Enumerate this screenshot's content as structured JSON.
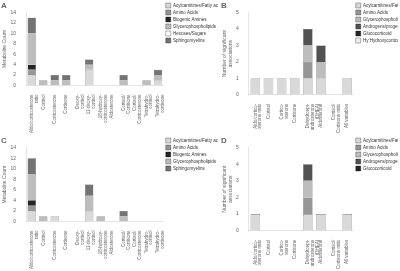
{
  "chart_data": [
    {
      "type": "bar",
      "stacked": true,
      "title": "A",
      "y_label": "Metabolite Count",
      "categories": [
        "Aldo/corticosterone\nratio",
        "Cortisol",
        "Corticosterone",
        "Cortisone",
        "Deoxy-\ncortisol",
        "11-deoxy-\ncortisol",
        "18-hydroxy-\ncorticosterone",
        "Aldosterone",
        "Cortisol/\nCortisone",
        "Cortisol/\nCorticosterone",
        "Tetrahydro-\ncortisol",
        "Tetrahydro-\ncortisone"
      ],
      "series": [
        {
          "name": "Acylcarnitines/Fatty acids",
          "color": "#d9d9d9",
          "values": [
            2,
            0,
            0,
            0,
            0,
            3,
            0,
            0,
            0,
            0,
            0,
            1
          ]
        },
        {
          "name": "Amino Acids",
          "color": "#969696",
          "values": [
            1,
            0,
            0,
            0,
            0,
            0,
            0,
            0,
            0,
            0,
            0,
            0
          ]
        },
        {
          "name": "Biogenic Amines",
          "color": "#252525",
          "values": [
            1,
            0,
            0,
            0,
            0,
            0,
            0,
            0,
            0,
            0,
            0,
            0
          ]
        },
        {
          "name": "Glycerophospholipids",
          "color": "#bdbdbd",
          "values": [
            6,
            1,
            1,
            1,
            0,
            1,
            0,
            0,
            1,
            0,
            1,
            1
          ]
        },
        {
          "name": "Hexoses/Sugars",
          "color": "#ffffff",
          "values": [
            0,
            0,
            0,
            0,
            0,
            0,
            0,
            0,
            0,
            0,
            0,
            0
          ]
        },
        {
          "name": "Sphingomyelins",
          "color": "#737373",
          "values": [
            3,
            0,
            1,
            1,
            0,
            1,
            0,
            0,
            1,
            0,
            0,
            1
          ]
        }
      ],
      "ylim": [
        0,
        14
      ],
      "yticks": [
        0,
        2,
        4,
        6,
        8,
        10,
        12,
        14
      ],
      "grid": false,
      "legend": "upper right"
    },
    {
      "type": "bar",
      "stacked": true,
      "title": "B",
      "y_label": "Number of significant associations",
      "categories": [
        "Aldo/cortico-\nsterone ratio",
        "Cortisol",
        "Cortico-\nsterone",
        "Cortisone",
        "Dehydroepi-\nandrosterone\n(DHEA)",
        "Aldosterone",
        "Cortisol/\nCortisone ratio",
        "All variables"
      ],
      "series": [
        {
          "name": "Acylcarnitines/Fatty acids",
          "color": "#d9d9d9",
          "values": [
            1,
            1,
            1,
            1,
            1,
            1,
            0,
            1
          ]
        },
        {
          "name": "Amino Acids",
          "color": "#969696",
          "values": [
            0,
            0,
            0,
            0,
            1,
            0,
            0,
            0
          ]
        },
        {
          "name": "Glycerophospholipids",
          "color": "#bdbdbd",
          "values": [
            0,
            0,
            0,
            0,
            1,
            1,
            0,
            0
          ]
        },
        {
          "name": "Androgens/progestins",
          "color": "#525252",
          "values": [
            0,
            0,
            0,
            0,
            1,
            1,
            0,
            0
          ]
        },
        {
          "name": "Glucocorticoid",
          "color": "#252525",
          "values": [
            0,
            0,
            0,
            0,
            0,
            0,
            0,
            0
          ]
        },
        {
          "name": "Hy Hydroxycorticosteroids",
          "color": "#f0f0f0",
          "values": [
            0,
            0,
            0,
            0,
            0,
            0,
            0,
            0
          ]
        }
      ],
      "ylim": [
        0,
        5
      ],
      "yticks": [
        0,
        1,
        2,
        3,
        4,
        5
      ],
      "grid": false,
      "legend": "upper right"
    },
    {
      "type": "bar",
      "stacked": true,
      "title": "C",
      "y_label": "Metabolite Count",
      "categories": [
        "Aldo/corticosterone\nratio",
        "Cortisol",
        "Corticosterone",
        "Cortisone",
        "Deoxy-\ncortisol",
        "11-deoxy-\ncortisol",
        "18-hydroxy-\ncorticosterone",
        "Aldosterone",
        "Cortisol/\nCortisone",
        "Cortisol/\nCorticosterone",
        "Tetrahydro-\ncortisol",
        "Tetrahydro-\ncortisone"
      ],
      "series": [
        {
          "name": "Acylcarnitines/Fatty acids",
          "color": "#d9d9d9",
          "values": [
            2,
            0,
            1,
            0,
            0,
            2,
            0,
            0,
            0,
            0,
            0,
            0
          ]
        },
        {
          "name": "Amino Acids",
          "color": "#969696",
          "values": [
            1,
            0,
            0,
            0,
            0,
            0,
            0,
            0,
            0,
            0,
            0,
            0
          ]
        },
        {
          "name": "Biogenic Amines",
          "color": "#252525",
          "values": [
            1,
            0,
            0,
            0,
            0,
            0,
            0,
            0,
            0,
            0,
            0,
            0
          ]
        },
        {
          "name": "Glycerophospholipids",
          "color": "#bdbdbd",
          "values": [
            5,
            1,
            0,
            0,
            0,
            3,
            1,
            0,
            1,
            0,
            0,
            0
          ]
        },
        {
          "name": "Sphingomyelins",
          "color": "#737373",
          "values": [
            3,
            0,
            0,
            0,
            0,
            2,
            0,
            0,
            1,
            0,
            0,
            0
          ]
        }
      ],
      "ylim": [
        0,
        14
      ],
      "yticks": [
        0,
        2,
        4,
        6,
        8,
        10,
        12,
        14
      ],
      "grid": false,
      "legend": "upper right"
    },
    {
      "type": "bar",
      "stacked": true,
      "title": "D",
      "y_label": "Number of significant associations",
      "categories": [
        "Aldo/cortico-\nsterone ratio",
        "Cortisol",
        "Cortico-\nsterone",
        "Cortisone",
        "Dehydroepi-\nandrosterone\n(DHEA)",
        "Aldosterone",
        "Cortisol/\nCortisone ratio",
        "All variables"
      ],
      "series": [
        {
          "name": "Acylcarnitines/Fatty acids",
          "color": "#d9d9d9",
          "values": [
            1,
            0,
            0,
            0,
            1,
            1,
            0,
            1
          ]
        },
        {
          "name": "Amino Acids",
          "color": "#969696",
          "values": [
            0,
            0,
            0,
            0,
            1,
            0,
            0,
            0
          ]
        },
        {
          "name": "Glycerophospholipids",
          "color": "#bdbdbd",
          "values": [
            0,
            0,
            0,
            0,
            1,
            0,
            0,
            0
          ]
        },
        {
          "name": "Androgens/progestins",
          "color": "#525252",
          "values": [
            0,
            0,
            0,
            0,
            1,
            0,
            0,
            0
          ]
        },
        {
          "name": "Glucocorticoid",
          "color": "#252525",
          "values": [
            0,
            0,
            0,
            0,
            0,
            0,
            0,
            0
          ]
        }
      ],
      "ylim": [
        0,
        5
      ],
      "yticks": [
        0,
        1,
        2,
        3,
        4,
        5
      ],
      "grid": false,
      "legend": "upper right"
    }
  ]
}
